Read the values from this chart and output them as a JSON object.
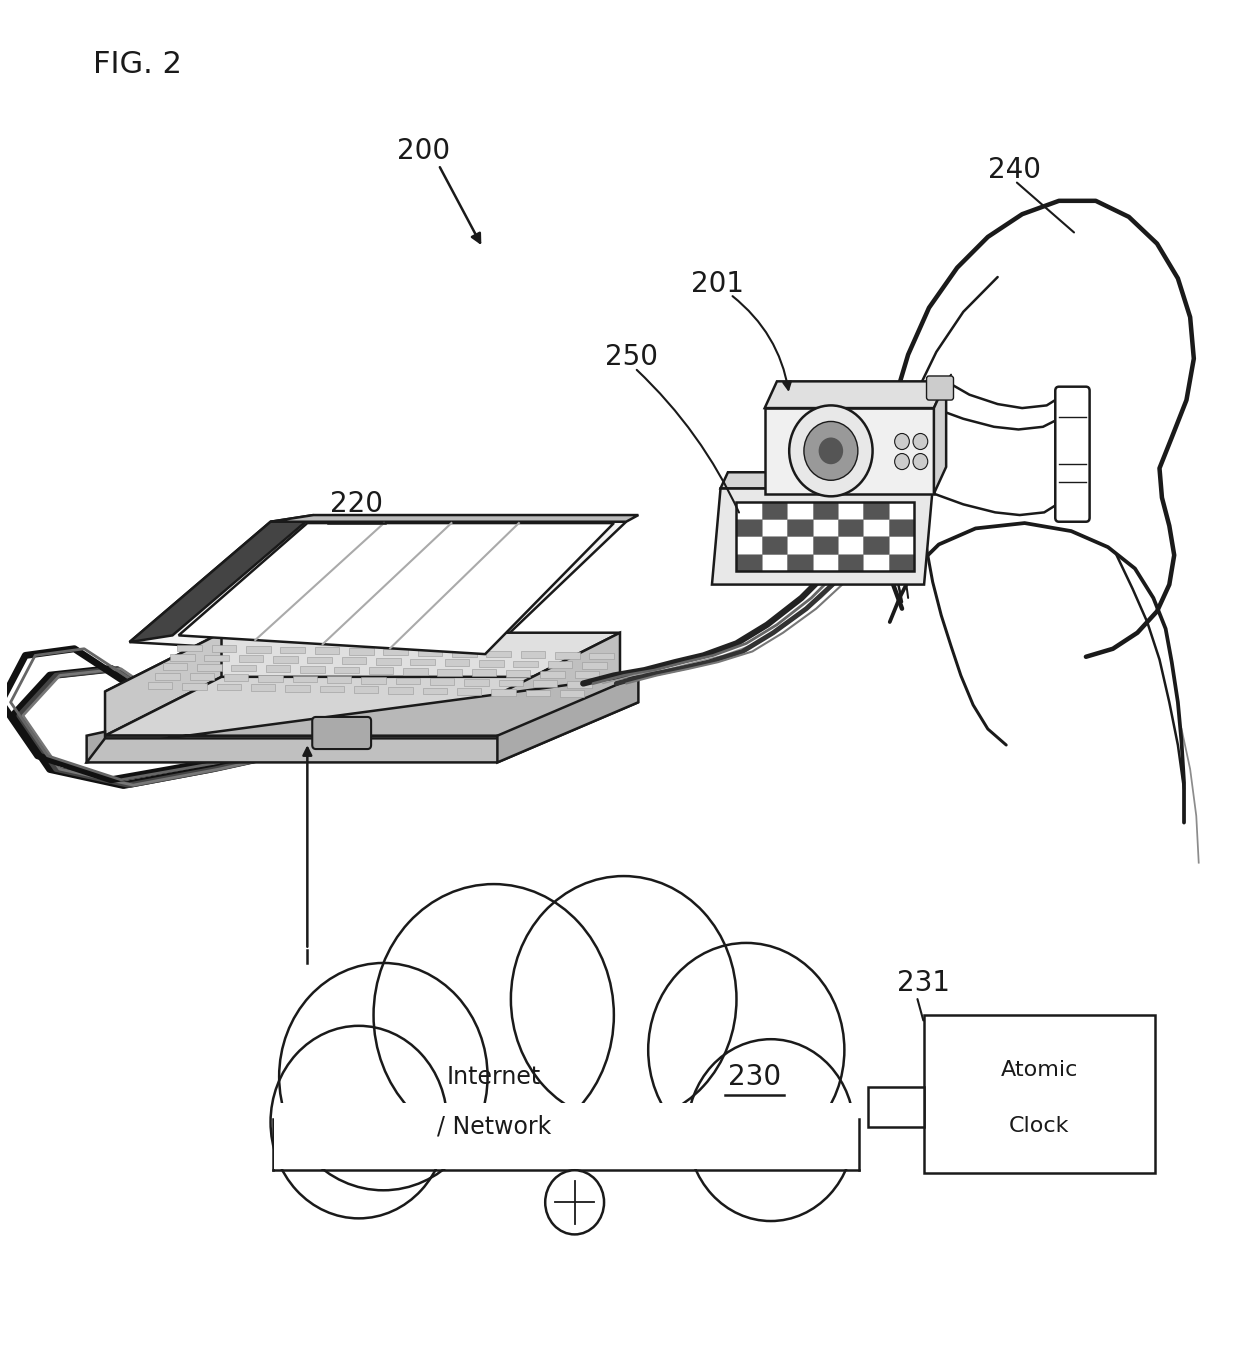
{
  "bg_color": "#ffffff",
  "line_color": "#1a1a1a",
  "fig_label": "FIG. 2",
  "labels": {
    "200": "200",
    "201": "201",
    "220": "220",
    "240": "240",
    "250": "250",
    "230": "230",
    "231": "231"
  },
  "cloud_text": [
    "Internet",
    "/ Network"
  ],
  "atomic_text": [
    "Atomic",
    "Clock"
  ]
}
